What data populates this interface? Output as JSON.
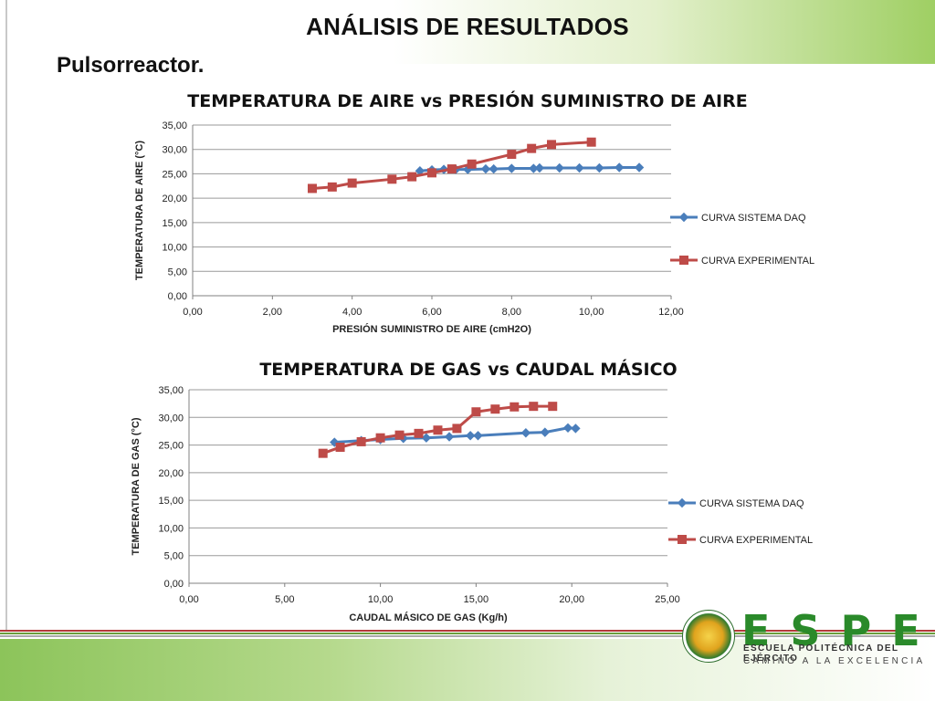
{
  "slide": {
    "title": "ANÁLISIS DE RESULTADOS",
    "subtitle": "Pulsorreactor."
  },
  "logo": {
    "acronym": "ESPE",
    "line1": "ESCUELA POLITÉCNICA DEL EJÉRCITO",
    "line2": "CAMINO A LA EXCELENCIA",
    "colors": {
      "green": "#2a8a2a"
    }
  },
  "colors": {
    "daq": "#4a7ebb",
    "experimental": "#be4b48",
    "grid": "#9a9a9a",
    "band_green": "#8cc45a"
  },
  "chart_data": [
    {
      "type": "line",
      "title": "TEMPERATURA DE AIRE vs PRESIÓN SUMINISTRO DE AIRE",
      "xlabel": "PRESIÓN SUMINISTRO DE AIRE (cmH2O)",
      "ylabel": "TEMPERATURA DE AIRE (°C)",
      "xlim": [
        0,
        12
      ],
      "ylim": [
        0,
        35
      ],
      "x_ticks": [
        "0,00",
        "2,00",
        "4,00",
        "6,00",
        "8,00",
        "10,00",
        "12,00"
      ],
      "y_ticks": [
        "0,00",
        "5,00",
        "10,00",
        "15,00",
        "20,00",
        "25,00",
        "30,00",
        "35,00"
      ],
      "grid": "horizontal",
      "legend": "right",
      "series": [
        {
          "name": "CURVA SISTEMA DAQ",
          "marker": "diamond",
          "x": [
            5.7,
            6.0,
            6.3,
            6.6,
            6.9,
            7.35,
            7.55,
            8.0,
            8.55,
            8.7,
            9.2,
            9.7,
            10.2,
            10.7,
            11.2
          ],
          "y": [
            25.6,
            25.8,
            25.9,
            25.9,
            25.9,
            26.0,
            26.0,
            26.1,
            26.1,
            26.2,
            26.2,
            26.2,
            26.2,
            26.3,
            26.3
          ]
        },
        {
          "name": "CURVA EXPERIMENTAL",
          "marker": "square",
          "x": [
            3.0,
            3.5,
            4.0,
            5.0,
            5.5,
            6.0,
            6.5,
            7.0,
            8.0,
            8.5,
            9.0,
            10.0
          ],
          "y": [
            22.0,
            22.3,
            23.1,
            23.9,
            24.4,
            25.2,
            26.0,
            27.0,
            29.0,
            30.2,
            31.0,
            31.5
          ]
        }
      ]
    },
    {
      "type": "line",
      "title": "TEMPERATURA DE GAS vs CAUDAL MÁSICO",
      "xlabel": "CAUDAL MÁSICO DE GAS (Kg/h)",
      "ylabel": "TEMPERATURA DE GAS (°C)",
      "xlim": [
        0,
        25
      ],
      "ylim": [
        0,
        35
      ],
      "x_ticks": [
        "0,00",
        "5,00",
        "10,00",
        "15,00",
        "20,00",
        "25,00"
      ],
      "y_ticks": [
        "0,00",
        "5,00",
        "10,00",
        "15,00",
        "20,00",
        "25,00",
        "30,00",
        "35,00"
      ],
      "grid": "horizontal",
      "legend": "right",
      "series": [
        {
          "name": "CURVA SISTEMA DAQ",
          "marker": "diamond",
          "x": [
            7.6,
            9.0,
            10.0,
            11.2,
            12.4,
            13.6,
            14.7,
            15.1,
            17.6,
            18.6,
            19.8,
            20.2
          ],
          "y": [
            25.5,
            25.8,
            26.0,
            26.2,
            26.3,
            26.5,
            26.7,
            26.7,
            27.2,
            27.3,
            28.1,
            28.0
          ]
        },
        {
          "name": "CURVA EXPERIMENTAL",
          "marker": "square",
          "x": [
            7.0,
            7.9,
            9.0,
            10.0,
            11.0,
            12.0,
            13.0,
            14.0,
            15.0,
            16.0,
            17.0,
            18.0,
            19.0
          ],
          "y": [
            23.5,
            24.6,
            25.6,
            26.3,
            26.8,
            27.1,
            27.7,
            28.0,
            31.0,
            31.5,
            31.9,
            32.0,
            32.0
          ]
        }
      ]
    }
  ]
}
